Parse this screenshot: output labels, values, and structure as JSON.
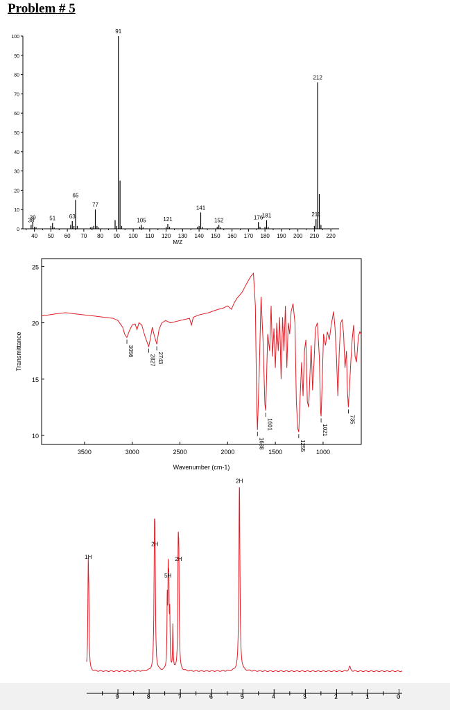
{
  "title": "Problem # 5",
  "chart_data": [
    {
      "type": "bar",
      "name": "mass-spectrum",
      "title": "",
      "xlabel": "M/Z",
      "ylabel": "",
      "xlim": [
        33,
        225
      ],
      "ylim": [
        0,
        100
      ],
      "xticks": [
        40,
        50,
        60,
        70,
        80,
        90,
        100,
        110,
        120,
        130,
        140,
        150,
        160,
        170,
        180,
        190,
        200,
        210,
        220
      ],
      "yticks": [
        0,
        10,
        20,
        30,
        40,
        50,
        60,
        70,
        80,
        90,
        100
      ],
      "peaks": [
        {
          "x": 38,
          "y": 2,
          "label": "38"
        },
        {
          "x": 39,
          "y": 3.5,
          "label": "39"
        },
        {
          "x": 40,
          "y": 1
        },
        {
          "x": 41,
          "y": 0.8
        },
        {
          "x": 50,
          "y": 1.5
        },
        {
          "x": 51,
          "y": 3,
          "label": "51"
        },
        {
          "x": 52,
          "y": 0.7
        },
        {
          "x": 62,
          "y": 2
        },
        {
          "x": 63,
          "y": 4,
          "label": "63"
        },
        {
          "x": 64,
          "y": 1.5
        },
        {
          "x": 65,
          "y": 15,
          "label": "65"
        },
        {
          "x": 66,
          "y": 1.5
        },
        {
          "x": 74,
          "y": 0.7
        },
        {
          "x": 75,
          "y": 1
        },
        {
          "x": 76,
          "y": 1.5
        },
        {
          "x": 77,
          "y": 10,
          "label": "77"
        },
        {
          "x": 78,
          "y": 1.5
        },
        {
          "x": 79,
          "y": 0.7
        },
        {
          "x": 89,
          "y": 4.5
        },
        {
          "x": 90,
          "y": 1.5
        },
        {
          "x": 91,
          "y": 100,
          "label": "91"
        },
        {
          "x": 92,
          "y": 25
        },
        {
          "x": 93,
          "y": 1.5
        },
        {
          "x": 104,
          "y": 1
        },
        {
          "x": 105,
          "y": 2,
          "label": "105"
        },
        {
          "x": 106,
          "y": 0.8
        },
        {
          "x": 120,
          "y": 1
        },
        {
          "x": 121,
          "y": 2.5,
          "label": "121"
        },
        {
          "x": 122,
          "y": 1
        },
        {
          "x": 139,
          "y": 1
        },
        {
          "x": 140,
          "y": 1.5
        },
        {
          "x": 141,
          "y": 8.5,
          "label": "141"
        },
        {
          "x": 142,
          "y": 1
        },
        {
          "x": 151,
          "y": 1
        },
        {
          "x": 152,
          "y": 2,
          "label": "152"
        },
        {
          "x": 153,
          "y": 0.8
        },
        {
          "x": 176,
          "y": 3.5,
          "label": "176"
        },
        {
          "x": 177,
          "y": 1
        },
        {
          "x": 180,
          "y": 1
        },
        {
          "x": 181,
          "y": 4.5,
          "label": "181"
        },
        {
          "x": 182,
          "y": 1
        },
        {
          "x": 210,
          "y": 1.5
        },
        {
          "x": 211,
          "y": 5,
          "label": "211"
        },
        {
          "x": 212,
          "y": 76,
          "label": "212"
        },
        {
          "x": 213,
          "y": 18
        },
        {
          "x": 214,
          "y": 2
        }
      ],
      "color": "#000000"
    },
    {
      "type": "line",
      "name": "ir-spectrum",
      "title": "",
      "xlabel": "Wavenumber (cm-1)",
      "ylabel": "Transmittance",
      "xlim": [
        3950,
        600
      ],
      "ylim": [
        9.2,
        25.7
      ],
      "xticks": [
        3500,
        3000,
        2500,
        2000,
        1500,
        1000
      ],
      "yticks": [
        10,
        15,
        20,
        25
      ],
      "color": "#e01b24",
      "points": [
        [
          3950,
          20.6
        ],
        [
          3800,
          20.8
        ],
        [
          3700,
          20.9
        ],
        [
          3600,
          20.8
        ],
        [
          3500,
          20.7
        ],
        [
          3400,
          20.6
        ],
        [
          3300,
          20.5
        ],
        [
          3200,
          20.4
        ],
        [
          3150,
          20.2
        ],
        [
          3100,
          19.6
        ],
        [
          3080,
          19.0
        ],
        [
          3056,
          18.7
        ],
        [
          3030,
          19.3
        ],
        [
          3000,
          19.8
        ],
        [
          2970,
          19.9
        ],
        [
          2950,
          19.4
        ],
        [
          2930,
          20.0
        ],
        [
          2900,
          19.8
        ],
        [
          2870,
          18.9
        ],
        [
          2850,
          18.4
        ],
        [
          2827,
          17.9
        ],
        [
          2810,
          18.6
        ],
        [
          2790,
          19.6
        ],
        [
          2770,
          18.9
        ],
        [
          2743,
          18.1
        ],
        [
          2720,
          19.4
        ],
        [
          2690,
          20.0
        ],
        [
          2650,
          20.2
        ],
        [
          2600,
          20.0
        ],
        [
          2500,
          20.2
        ],
        [
          2400,
          20.4
        ],
        [
          2380,
          19.8
        ],
        [
          2360,
          20.5
        ],
        [
          2300,
          20.7
        ],
        [
          2200,
          20.9
        ],
        [
          2100,
          21.2
        ],
        [
          2050,
          21.3
        ],
        [
          2000,
          21.5
        ],
        [
          1960,
          21.2
        ],
        [
          1930,
          21.8
        ],
        [
          1900,
          22.2
        ],
        [
          1850,
          22.7
        ],
        [
          1800,
          23.5
        ],
        [
          1760,
          24.1
        ],
        [
          1730,
          24.4
        ],
        [
          1710,
          21.5
        ],
        [
          1695,
          12.5
        ],
        [
          1688,
          10.5
        ],
        [
          1670,
          15.5
        ],
        [
          1650,
          22.3
        ],
        [
          1630,
          18.5
        ],
        [
          1610,
          12.8
        ],
        [
          1601,
          12.2
        ],
        [
          1590,
          16.0
        ],
        [
          1580,
          19.0
        ],
        [
          1560,
          17.5
        ],
        [
          1545,
          21.5
        ],
        [
          1530,
          17.0
        ],
        [
          1515,
          19.5
        ],
        [
          1500,
          16.0
        ],
        [
          1485,
          20.0
        ],
        [
          1470,
          17.5
        ],
        [
          1455,
          20.5
        ],
        [
          1440,
          15.0
        ],
        [
          1425,
          20.5
        ],
        [
          1410,
          17.5
        ],
        [
          1395,
          21.5
        ],
        [
          1380,
          16.0
        ],
        [
          1365,
          20.0
        ],
        [
          1350,
          19.0
        ],
        [
          1335,
          21.0
        ],
        [
          1315,
          21.7
        ],
        [
          1295,
          20.0
        ],
        [
          1280,
          13.0
        ],
        [
          1265,
          10.6
        ],
        [
          1255,
          10.3
        ],
        [
          1240,
          13.5
        ],
        [
          1225,
          16.5
        ],
        [
          1210,
          13.5
        ],
        [
          1195,
          17.5
        ],
        [
          1180,
          18.5
        ],
        [
          1165,
          13.0
        ],
        [
          1150,
          12.5
        ],
        [
          1140,
          15.0
        ],
        [
          1125,
          18.0
        ],
        [
          1110,
          14.0
        ],
        [
          1095,
          16.5
        ],
        [
          1080,
          19.5
        ],
        [
          1060,
          20.0
        ],
        [
          1040,
          17.0
        ],
        [
          1025,
          12.0
        ],
        [
          1021,
          11.7
        ],
        [
          1010,
          14.5
        ],
        [
          995,
          19.0
        ],
        [
          975,
          18.0
        ],
        [
          955,
          19.2
        ],
        [
          935,
          18.5
        ],
        [
          915,
          19.8
        ],
        [
          890,
          21.0
        ],
        [
          875,
          19.5
        ],
        [
          860,
          17.0
        ],
        [
          845,
          13.5
        ],
        [
          830,
          17.5
        ],
        [
          815,
          20.0
        ],
        [
          800,
          20.3
        ],
        [
          785,
          19.0
        ],
        [
          770,
          16.0
        ],
        [
          755,
          17.5
        ],
        [
          745,
          14.0
        ],
        [
          735,
          12.5
        ],
        [
          725,
          14.0
        ],
        [
          710,
          16.5
        ],
        [
          695,
          18.5
        ],
        [
          680,
          19.8
        ],
        [
          665,
          17.0
        ],
        [
          650,
          16.5
        ],
        [
          630,
          18.8
        ],
        [
          615,
          19.2
        ],
        [
          600,
          19.0
        ]
      ],
      "annotations": [
        {
          "x": 3056,
          "y": 18.7,
          "label": "3056"
        },
        {
          "x": 2827,
          "y": 17.9,
          "label": "2827"
        },
        {
          "x": 2743,
          "y": 18.1,
          "label": "2743"
        },
        {
          "x": 1688,
          "y": 10.5,
          "label": "1688"
        },
        {
          "x": 1601,
          "y": 12.2,
          "label": "1601"
        },
        {
          "x": 1255,
          "y": 10.3,
          "label": "1255"
        },
        {
          "x": 1021,
          "y": 11.7,
          "label": "1021"
        },
        {
          "x": 735,
          "y": 12.5,
          "label": "735"
        }
      ]
    },
    {
      "type": "line",
      "name": "nmr-spectrum",
      "title": "",
      "xlabel": "",
      "ylabel": "",
      "xlim": [
        10.0,
        -0.1
      ],
      "ylim": [
        0,
        100
      ],
      "xticks": [
        9,
        8,
        7,
        6,
        5,
        4,
        3,
        2,
        1,
        0
      ],
      "color": "#e01b24",
      "baseline": 1.5,
      "peaks": [
        {
          "x": 9.95,
          "h": 54,
          "w": 0.015
        },
        {
          "x": 9.93,
          "h": 26,
          "w": 0.012
        },
        {
          "x": 7.83,
          "h": 61,
          "w": 0.018
        },
        {
          "x": 7.81,
          "h": 51,
          "w": 0.015
        },
        {
          "x": 7.42,
          "h": 35,
          "w": 0.012
        },
        {
          "x": 7.39,
          "h": 44,
          "w": 0.012
        },
        {
          "x": 7.37,
          "h": 37,
          "w": 0.012
        },
        {
          "x": 7.34,
          "h": 27,
          "w": 0.012
        },
        {
          "x": 7.24,
          "h": 24,
          "w": 0.012
        },
        {
          "x": 7.07,
          "h": 56,
          "w": 0.015
        },
        {
          "x": 7.05,
          "h": 49,
          "w": 0.015
        },
        {
          "x": 5.11,
          "h": 100,
          "w": 0.02
        },
        {
          "x": 1.58,
          "h": 2.5,
          "w": 0.03
        }
      ],
      "integrations": [
        {
          "x": 9.95,
          "h": 61,
          "label": "1H"
        },
        {
          "x": 7.82,
          "h": 68,
          "label": "2H"
        },
        {
          "x": 7.4,
          "h": 51,
          "label": "5H"
        },
        {
          "x": 7.06,
          "h": 60,
          "label": "2H"
        },
        {
          "x": 5.11,
          "h": 102,
          "label": "2H"
        }
      ]
    }
  ]
}
